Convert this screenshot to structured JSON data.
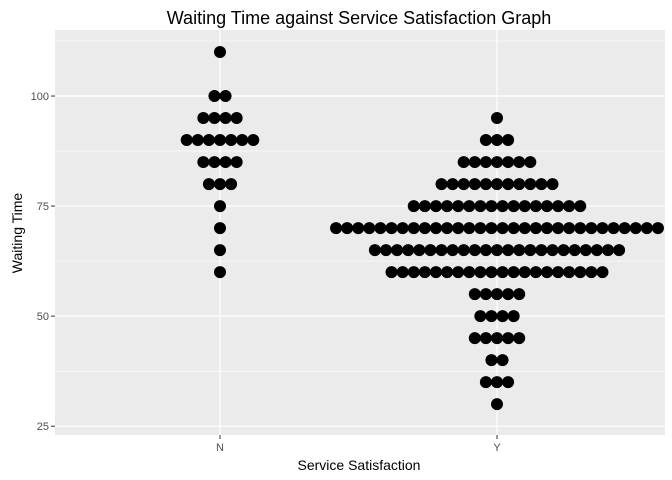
{
  "chart_data": {
    "type": "scatter",
    "subtype": "dotplot",
    "title": "Waiting Time against Service Satisfaction Graph",
    "xlabel": "Service Satisfaction",
    "ylabel": "Waiting Time",
    "categories": [
      "N",
      "Y"
    ],
    "ylim": [
      23,
      115
    ],
    "yticks": [
      25,
      50,
      75,
      100
    ],
    "grid": true,
    "background": "#ebebeb",
    "grid_color": "#ffffff",
    "point_color": "#000000",
    "groups": [
      {
        "category": "N",
        "bins": [
          {
            "y": 60,
            "count": 1
          },
          {
            "y": 65,
            "count": 1
          },
          {
            "y": 70,
            "count": 1
          },
          {
            "y": 75,
            "count": 1
          },
          {
            "y": 80,
            "count": 3
          },
          {
            "y": 85,
            "count": 4
          },
          {
            "y": 90,
            "count": 7
          },
          {
            "y": 95,
            "count": 4
          },
          {
            "y": 100,
            "count": 2
          },
          {
            "y": 110,
            "count": 1
          }
        ]
      },
      {
        "category": "Y",
        "bins": [
          {
            "y": 30,
            "count": 1
          },
          {
            "y": 35,
            "count": 3
          },
          {
            "y": 40,
            "count": 2
          },
          {
            "y": 45,
            "count": 5
          },
          {
            "y": 50,
            "count": 4
          },
          {
            "y": 55,
            "count": 5
          },
          {
            "y": 60,
            "count": 20
          },
          {
            "y": 65,
            "count": 23
          },
          {
            "y": 70,
            "count": 30
          },
          {
            "y": 75,
            "count": 16
          },
          {
            "y": 80,
            "count": 11
          },
          {
            "y": 85,
            "count": 7
          },
          {
            "y": 90,
            "count": 3
          },
          {
            "y": 95,
            "count": 1
          }
        ]
      }
    ]
  }
}
